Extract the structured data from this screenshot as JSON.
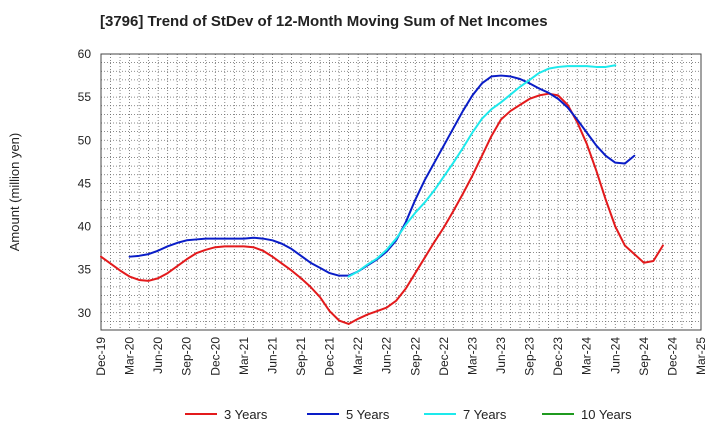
{
  "chart_data": {
    "type": "line",
    "title": "[3796]  Trend of StDev of 12-Month Moving Sum of Net Incomes",
    "ylabel": "Amount (million yen)",
    "xlabel": "",
    "ylim": [
      28,
      60
    ],
    "yticks": [
      30,
      35,
      40,
      45,
      50,
      55,
      60
    ],
    "xticks": [
      "Dec-19",
      "Mar-20",
      "Jun-20",
      "Sep-20",
      "Dec-20",
      "Mar-21",
      "Jun-21",
      "Sep-21",
      "Dec-21",
      "Mar-22",
      "Jun-22",
      "Sep-22",
      "Dec-22",
      "Mar-23",
      "Jun-23",
      "Sep-23",
      "Dec-23",
      "Mar-24",
      "Jun-24",
      "Sep-24",
      "Dec-24",
      "Mar-25"
    ],
    "x_months": [
      "Dec-19",
      "Jan-20",
      "Feb-20",
      "Mar-20",
      "Apr-20",
      "May-20",
      "Jun-20",
      "Jul-20",
      "Aug-20",
      "Sep-20",
      "Oct-20",
      "Nov-20",
      "Dec-20",
      "Jan-21",
      "Feb-21",
      "Mar-21",
      "Apr-21",
      "May-21",
      "Jun-21",
      "Jul-21",
      "Aug-21",
      "Sep-21",
      "Oct-21",
      "Nov-21",
      "Dec-21",
      "Jan-22",
      "Feb-22",
      "Mar-22",
      "Apr-22",
      "May-22",
      "Jun-22",
      "Jul-22",
      "Aug-22",
      "Sep-22",
      "Oct-22",
      "Nov-22",
      "Dec-22",
      "Jan-23",
      "Feb-23",
      "Mar-23",
      "Apr-23",
      "May-23",
      "Jun-23",
      "Jul-23",
      "Aug-23",
      "Sep-23",
      "Oct-23",
      "Nov-23",
      "Dec-23",
      "Jan-24",
      "Feb-24",
      "Mar-24",
      "Apr-24",
      "May-24",
      "Jun-24",
      "Jul-24",
      "Aug-24",
      "Sep-24",
      "Oct-24",
      "Nov-24",
      "Dec-24",
      "Jan-25",
      "Feb-25",
      "Mar-25"
    ],
    "grid": true,
    "legend_position": "bottom",
    "series": [
      {
        "name": "3 Years",
        "color": "#e31a1c",
        "values": [
          36.5,
          35.7,
          34.9,
          34.2,
          33.8,
          33.7,
          34.0,
          34.6,
          35.4,
          36.2,
          36.9,
          37.3,
          37.6,
          37.7,
          37.7,
          37.7,
          37.6,
          37.2,
          36.5,
          35.7,
          34.9,
          34.0,
          33.0,
          31.8,
          30.2,
          29.1,
          28.7,
          29.3,
          29.8,
          30.2,
          30.6,
          31.4,
          32.8,
          34.6,
          36.4,
          38.2,
          39.9,
          41.8,
          43.8,
          45.9,
          48.2,
          50.5,
          52.4,
          53.4,
          54.1,
          54.8,
          55.2,
          55.4,
          55.2,
          54.1,
          52.1,
          49.6,
          46.5,
          43.1,
          40.0,
          37.8,
          36.8,
          35.8,
          36.0,
          37.8,
          null,
          null,
          null,
          null
        ]
      },
      {
        "name": "5 Years",
        "color": "#0a1dc7",
        "values": [
          null,
          null,
          null,
          36.5,
          36.6,
          36.8,
          37.2,
          37.7,
          38.1,
          38.4,
          38.5,
          38.6,
          38.6,
          38.6,
          38.6,
          38.6,
          38.7,
          38.6,
          38.4,
          38.0,
          37.4,
          36.6,
          35.8,
          35.2,
          34.6,
          34.3,
          34.3,
          34.8,
          35.5,
          36.2,
          37.1,
          38.4,
          40.5,
          43.1,
          45.4,
          47.4,
          49.4,
          51.4,
          53.4,
          55.2,
          56.6,
          57.4,
          57.5,
          57.4,
          57.1,
          56.6,
          56.0,
          55.5,
          54.8,
          53.8,
          52.4,
          50.9,
          49.4,
          48.2,
          47.4,
          47.3,
          48.2,
          null,
          null,
          null,
          null,
          null,
          null,
          null
        ]
      },
      {
        "name": "7 Years",
        "color": "#1de9ec",
        "values": [
          null,
          null,
          null,
          null,
          null,
          null,
          null,
          null,
          null,
          null,
          null,
          null,
          null,
          null,
          null,
          null,
          null,
          null,
          null,
          null,
          null,
          null,
          null,
          null,
          null,
          null,
          34.2,
          34.8,
          35.6,
          36.3,
          37.3,
          38.6,
          40.2,
          41.6,
          42.8,
          44.2,
          45.8,
          47.4,
          49.1,
          50.9,
          52.5,
          53.6,
          54.4,
          55.3,
          56.2,
          57.0,
          57.8,
          58.3,
          58.5,
          58.6,
          58.6,
          58.6,
          58.5,
          58.5,
          58.7,
          null,
          null,
          null,
          null,
          null,
          null,
          null,
          null,
          null
        ]
      },
      {
        "name": "10 Years",
        "color": "#1f9a1f",
        "values": []
      }
    ]
  }
}
